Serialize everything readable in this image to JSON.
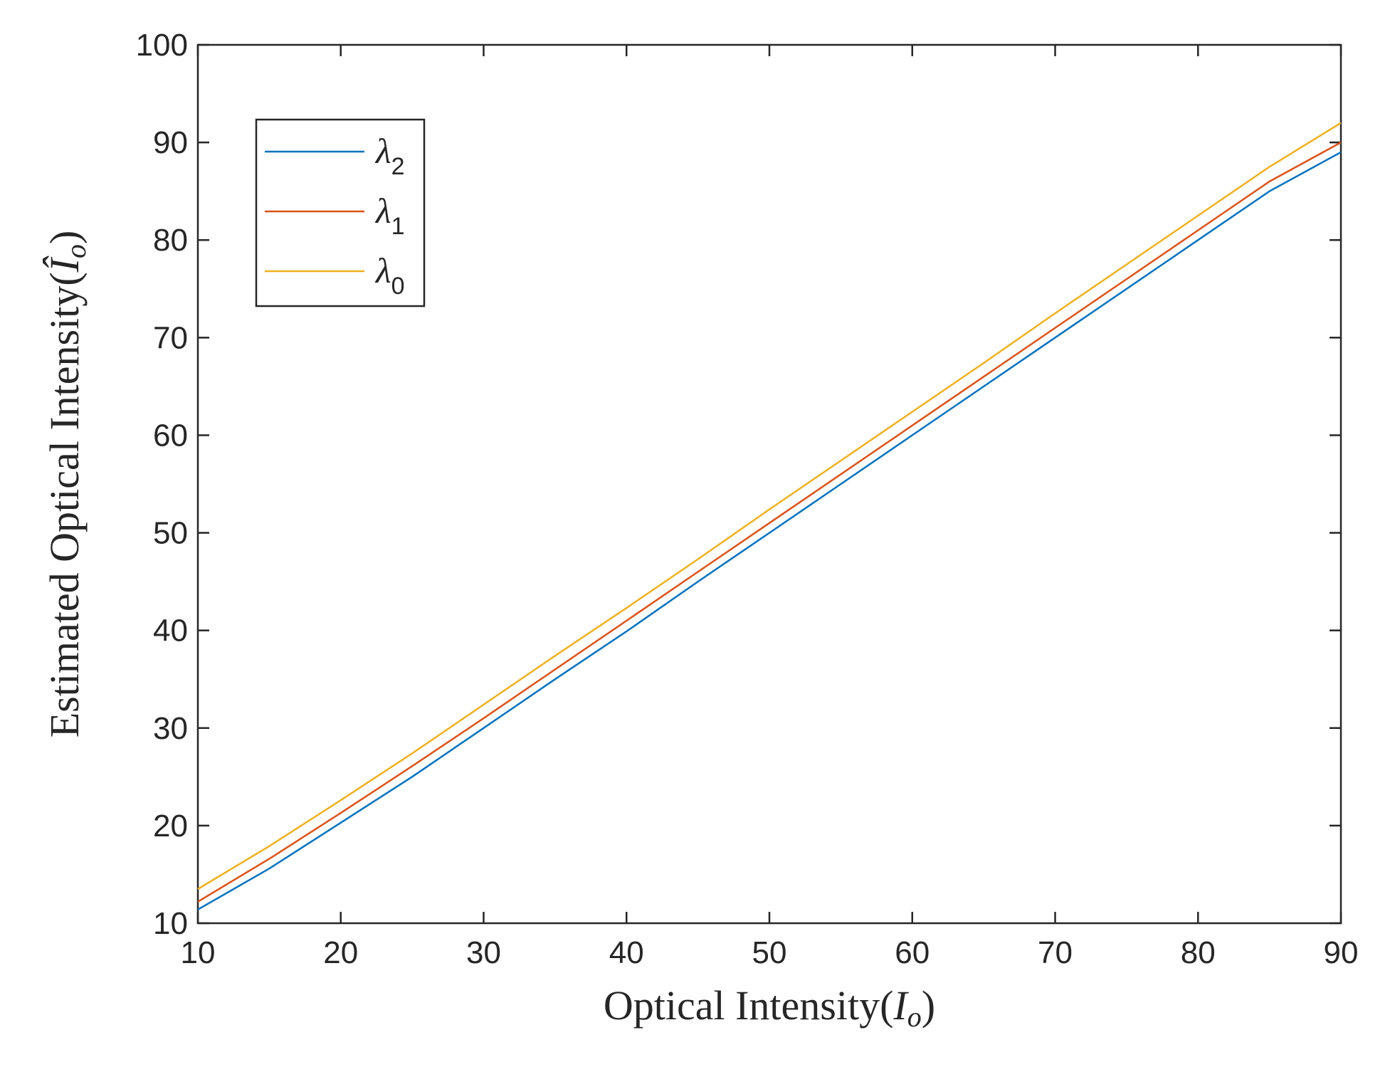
{
  "chart_data": {
    "type": "line",
    "title": "",
    "xlabel": {
      "prefix": "Optical Intensity(",
      "symbol": "I",
      "subscript": "o",
      "suffix": ")"
    },
    "ylabel": {
      "prefix": "Estimated Optical Intensity(",
      "symbol": "Î",
      "subscript": "o",
      "suffix": ")"
    },
    "xlim": [
      10,
      90
    ],
    "ylim": [
      10,
      100
    ],
    "xticks": [
      "10",
      "20",
      "30",
      "40",
      "50",
      "60",
      "70",
      "80",
      "90"
    ],
    "yticks": [
      "10",
      "20",
      "30",
      "40",
      "50",
      "60",
      "70",
      "80",
      "90",
      "100"
    ],
    "grid": false,
    "legend": {
      "placement": "top-left"
    },
    "series": [
      {
        "name": "λ",
        "sub": "2",
        "color": "#0072BD",
        "x": [
          10,
          15,
          20,
          25,
          30,
          35,
          40,
          45,
          50,
          55,
          60,
          65,
          70,
          75,
          80,
          85,
          90
        ],
        "values": [
          11.4,
          15.6,
          20.3,
          25.0,
          30.0,
          35.0,
          39.9,
          45.0,
          50.0,
          55.0,
          60.0,
          65.0,
          70.0,
          75.0,
          80.0,
          85.0,
          89.0
        ]
      },
      {
        "name": "λ",
        "sub": "1",
        "color": "#D95319",
        "x": [
          10,
          15,
          20,
          25,
          30,
          35,
          40,
          45,
          50,
          55,
          60,
          65,
          70,
          75,
          80,
          85,
          90
        ],
        "values": [
          12.2,
          16.6,
          21.3,
          26.1,
          31.0,
          36.0,
          41.0,
          46.0,
          51.0,
          56.0,
          61.0,
          66.0,
          71.0,
          76.0,
          81.0,
          86.0,
          90.0
        ]
      },
      {
        "name": "λ",
        "sub": "0",
        "color": "#EDB120",
        "x": [
          10,
          15,
          20,
          25,
          30,
          35,
          40,
          45,
          50,
          55,
          60,
          65,
          70,
          75,
          80,
          85,
          90
        ],
        "values": [
          13.5,
          17.9,
          22.6,
          27.4,
          32.4,
          37.4,
          42.3,
          47.3,
          52.4,
          57.4,
          62.4,
          67.4,
          72.5,
          77.5,
          82.5,
          87.5,
          92.0
        ]
      }
    ]
  }
}
